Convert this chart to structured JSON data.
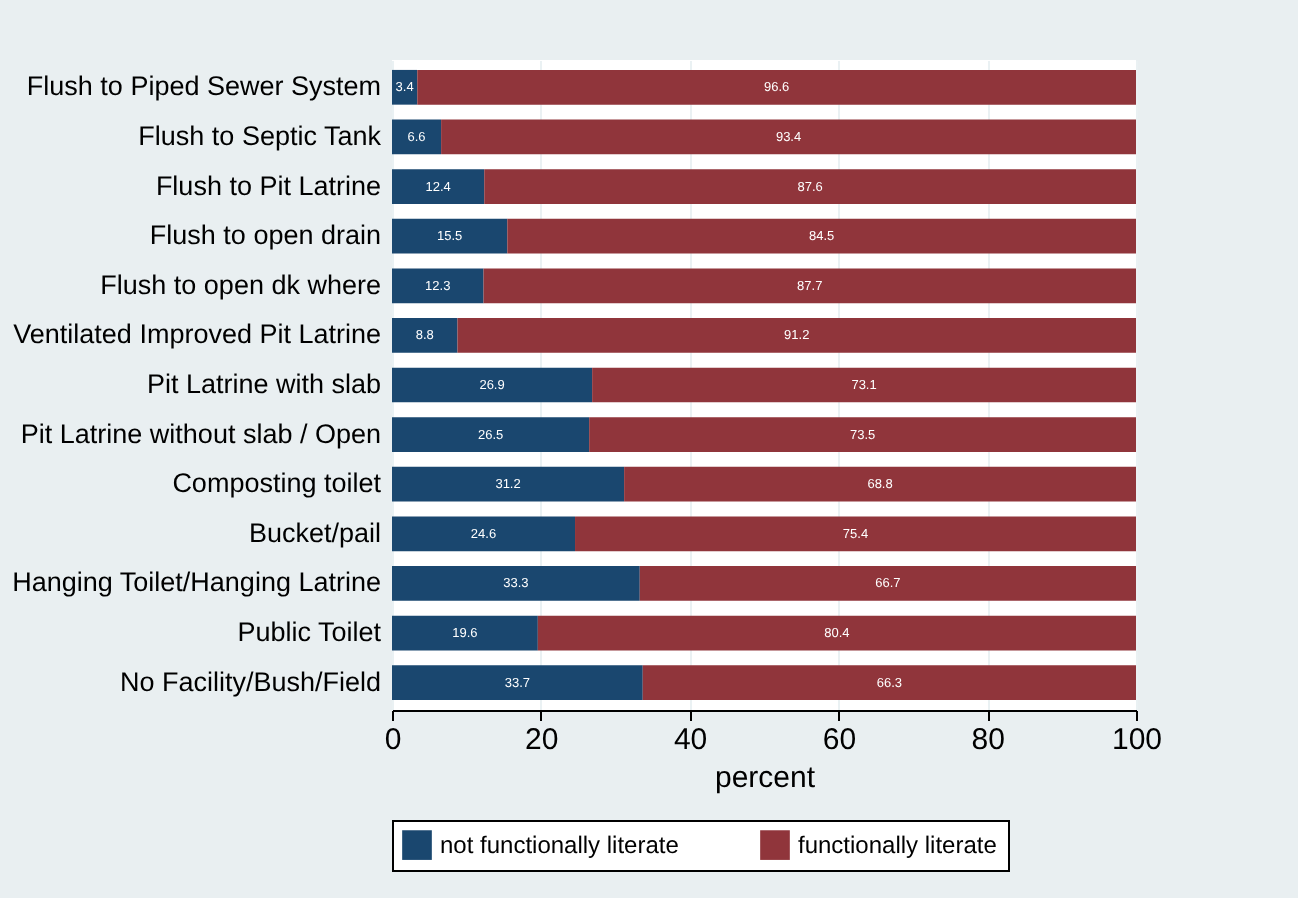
{
  "chart_data": {
    "type": "bar",
    "orientation": "horizontal",
    "stacked": true,
    "xlabel": "percent",
    "categories": [
      "Flush to Piped Sewer System",
      "Flush to Septic Tank",
      "Flush to Pit Latrine",
      "Flush to open drain",
      "Flush to open dk where",
      "Ventilated Improved Pit Latrine",
      "Pit Latrine with slab",
      "Pit Latrine without slab / Open",
      "Composting toilet",
      "Bucket/pail",
      "Hanging Toilet/Hanging Latrine",
      "Public Toilet",
      "No Facility/Bush/Field"
    ],
    "series": [
      {
        "name": "not functionally literate",
        "color": "#1a476f",
        "values": [
          3.4,
          6.6,
          12.4,
          15.5,
          12.3,
          8.8,
          26.9,
          26.5,
          31.2,
          24.6,
          33.3,
          19.6,
          33.7
        ]
      },
      {
        "name": "functionally literate",
        "color": "#90353b",
        "values": [
          96.6,
          93.4,
          87.6,
          84.5,
          87.7,
          91.2,
          73.1,
          73.5,
          68.8,
          75.4,
          66.7,
          80.4,
          66.3
        ]
      }
    ],
    "xlim": [
      0,
      100
    ],
    "xticks": [
      0,
      20,
      40,
      60,
      80,
      100
    ],
    "grid": "x",
    "legend": "bottom",
    "data_labels": true
  }
}
